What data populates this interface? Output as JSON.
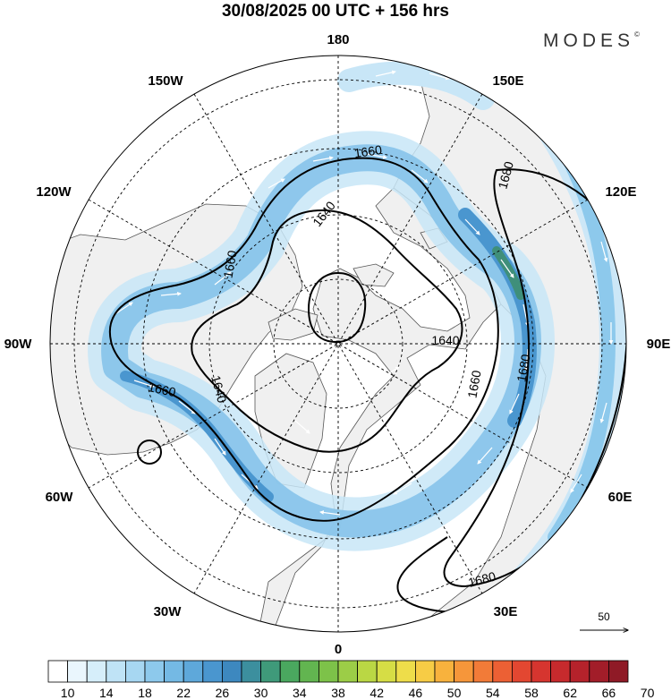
{
  "header": {
    "title": "30/08/2025  00 UTC  + 156 hrs",
    "brand": "MODES",
    "brand_mark": "©"
  },
  "map": {
    "projection": "north-polar-stereographic",
    "longitude_labels": {
      "top": "180",
      "top_right": "150E",
      "right_upper": "120E",
      "right": "90E",
      "right_lower": "60E",
      "bottom_right": "30E",
      "bottom": "0",
      "bottom_left": "30W",
      "left_lower": "60W",
      "left": "90W",
      "left_upper": "120W",
      "top_left": "150W"
    },
    "contour_labels": [
      "1660",
      "1640",
      "1660",
      "1680",
      "1640",
      "1660",
      "1640",
      "1660",
      "1680",
      "1680"
    ],
    "wind_reference": {
      "value": "50",
      "arrow": "reference-arrow"
    },
    "colors": {
      "land": "#f2f2f2",
      "ocean_background": "#ffffff",
      "jet_light": "#c8e6f7",
      "jet_medium": "#86c3ea",
      "jet_strong": "#4a96cf",
      "jet_core": "#3f8f7a"
    }
  },
  "colorbar": {
    "labels": [
      "10",
      "14",
      "18",
      "22",
      "26",
      "30",
      "34",
      "38",
      "42",
      "46",
      "50",
      "54",
      "58",
      "62",
      "66",
      "70"
    ],
    "colors": [
      "#ffffff",
      "#eaf6fd",
      "#d6eefa",
      "#bfe3f6",
      "#a7d7f2",
      "#8dc9ec",
      "#74b9e4",
      "#5ea8da",
      "#4a96cf",
      "#3d88bf",
      "#3c8f9e",
      "#3f9a7a",
      "#4aa85f",
      "#62b550",
      "#7dc249",
      "#9ccd47",
      "#bad744",
      "#d6dd45",
      "#eedd4a",
      "#f7cc45",
      "#f8b23d",
      "#f6963a",
      "#f27b38",
      "#ec6034",
      "#e34731",
      "#d6352f",
      "#c72a2d",
      "#b5222b",
      "#a21d29",
      "#8f1a26"
    ]
  }
}
